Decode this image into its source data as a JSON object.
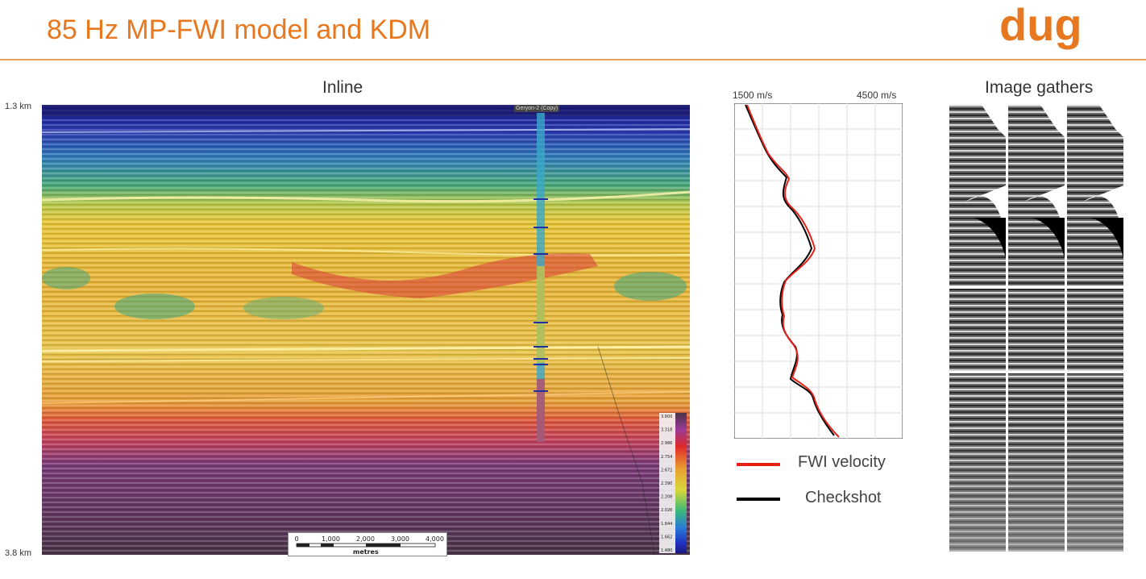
{
  "slide": {
    "title": "85 Hz MP-FWI model and KDM",
    "logo_text": "dug"
  },
  "inline_panel": {
    "title": "Inline",
    "depth_top": "1.3 km",
    "depth_bottom": "3.8 km",
    "well_label": "Geryon-2 (Copy)",
    "colorbar_ticks": [
      "3.800",
      "3.318",
      "2.986",
      "2.754",
      "2.672",
      "2.390",
      "2.208",
      "2.026",
      "1.844",
      "1.662",
      "1.480"
    ],
    "scalebar": {
      "ticks": [
        "0",
        "1,000",
        "2,000",
        "3,000",
        "4,000"
      ],
      "unit": "metres"
    }
  },
  "velocity_panel": {
    "min_label": "1500 m/s",
    "max_label": "4500 m/s",
    "legend": [
      {
        "name": "FWI velocity",
        "color": "#e8201a"
      },
      {
        "name": "Checkshot",
        "color": "#000000"
      }
    ]
  },
  "gathers_panel": {
    "title": "Image gathers"
  },
  "colors": {
    "accent": "#e8781f",
    "fwi": "#e8201a",
    "checkshot": "#000000"
  }
}
